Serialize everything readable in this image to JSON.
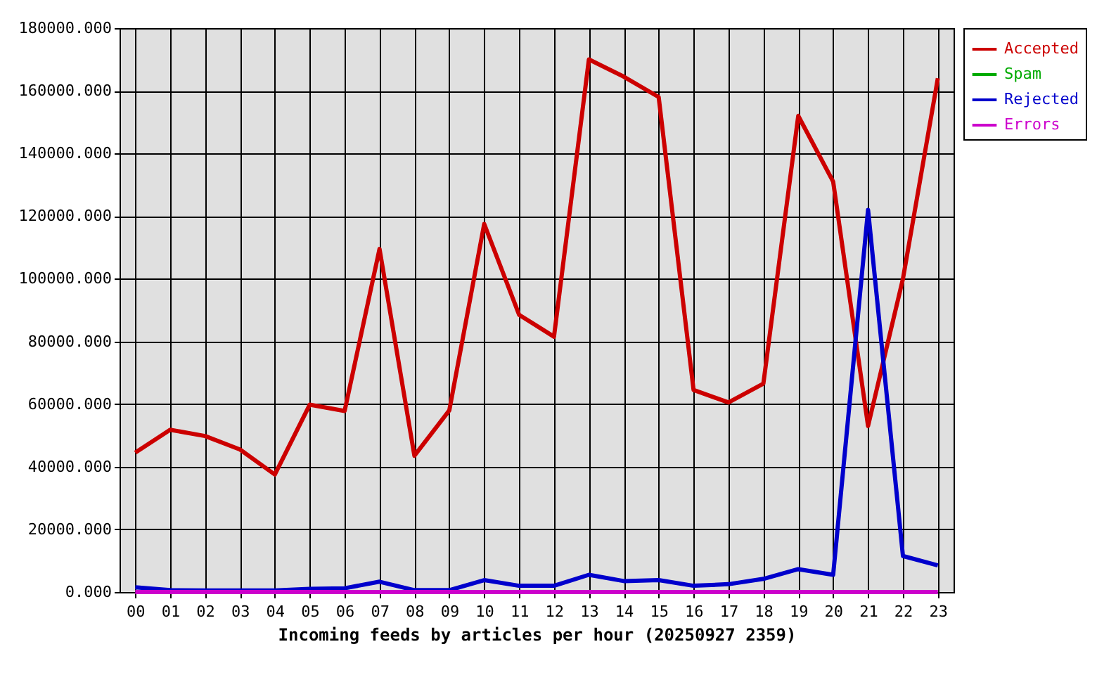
{
  "chart_data": {
    "type": "line",
    "xlabel": "Incoming feeds by articles per hour (20250927 2359)",
    "categories": [
      "00",
      "01",
      "02",
      "03",
      "04",
      "05",
      "06",
      "07",
      "08",
      "09",
      "10",
      "11",
      "12",
      "13",
      "14",
      "15",
      "16",
      "17",
      "18",
      "19",
      "20",
      "21",
      "22",
      "23"
    ],
    "series": [
      {
        "name": "Accepted",
        "color": "#cc0000",
        "values": [
          44500,
          51800,
          49800,
          45500,
          37500,
          59800,
          57800,
          109500,
          43500,
          58000,
          117500,
          88500,
          81500,
          170000,
          164500,
          158000,
          64500,
          60500,
          66500,
          152000,
          131000,
          53000,
          100000,
          164000
        ]
      },
      {
        "name": "Spam",
        "color": "#00aa00",
        "values": [
          null,
          null,
          null,
          null,
          null,
          null,
          null,
          null,
          null,
          null,
          null,
          null,
          null,
          null,
          null,
          null,
          null,
          null,
          null,
          null,
          null,
          null,
          null,
          null
        ]
      },
      {
        "name": "Rejected",
        "color": "#0000cc",
        "values": [
          1500,
          600,
          500,
          500,
          500,
          1000,
          1200,
          3300,
          600,
          600,
          3800,
          2000,
          2000,
          5500,
          3500,
          3800,
          2000,
          2500,
          4200,
          7300,
          5500,
          122000,
          11500,
          8500
        ]
      },
      {
        "name": "Errors",
        "color": "#cc00cc",
        "values": [
          0,
          0,
          0,
          0,
          0,
          0,
          0,
          0,
          0,
          0,
          0,
          0,
          0,
          0,
          0,
          0,
          0,
          0,
          0,
          0,
          0,
          0,
          0,
          0
        ]
      }
    ],
    "ylim": [
      0,
      180000
    ],
    "yticks": [
      {
        "value": 0,
        "label": "0.000"
      },
      {
        "value": 20000,
        "label": "20000.000"
      },
      {
        "value": 40000,
        "label": "40000.000"
      },
      {
        "value": 60000,
        "label": "60000.000"
      },
      {
        "value": 80000,
        "label": "80000.000"
      },
      {
        "value": 100000,
        "label": "100000.000"
      },
      {
        "value": 120000,
        "label": "120000.000"
      },
      {
        "value": 140000,
        "label": "140000.000"
      },
      {
        "value": 160000,
        "label": "160000.000"
      },
      {
        "value": 180000,
        "label": "180000.000"
      }
    ],
    "grid": true,
    "legend": "top right",
    "marker": "none",
    "line_style": "solid"
  }
}
